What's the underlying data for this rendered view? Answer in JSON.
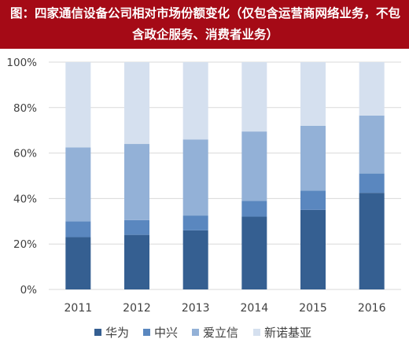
{
  "title": "图：四家通信设备公司相对市场份额变化（仅包含运营商网络业务，不包含政企服务、消费者业务）",
  "colors": {
    "title_bg": "#a50a16",
    "title_fg": "#ffffff",
    "grid": "#d9d9d9",
    "axis_text": "#404040"
  },
  "chart_data": {
    "type": "bar",
    "stacked": true,
    "categories": [
      "2011",
      "2012",
      "2013",
      "2014",
      "2015",
      "2016"
    ],
    "ylim": [
      0,
      100
    ],
    "yticks": [
      "0%",
      "20%",
      "40%",
      "60%",
      "80%",
      "100%"
    ],
    "grid": true,
    "legend_position": "bottom",
    "series": [
      {
        "name": "华为",
        "color": "#355f91",
        "values": [
          23,
          24,
          26,
          32,
          35,
          42.5
        ]
      },
      {
        "name": "中兴",
        "color": "#5a87bf",
        "values": [
          7,
          6.5,
          6.5,
          7,
          8.5,
          8.5
        ]
      },
      {
        "name": "爱立信",
        "color": "#93b1d7",
        "values": [
          32.5,
          33.5,
          33.5,
          30.5,
          28.5,
          25.5
        ]
      },
      {
        "name": "新诺基亚",
        "color": "#d5e0ef",
        "values": [
          37.5,
          36,
          34,
          30.5,
          28,
          23.5
        ]
      }
    ]
  }
}
